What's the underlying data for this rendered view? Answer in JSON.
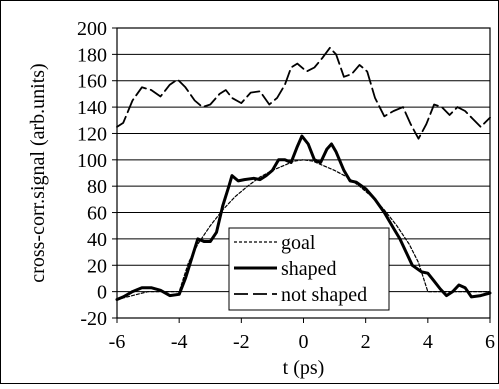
{
  "chart_data": {
    "type": "line",
    "title": "",
    "xlabel": "t (ps)",
    "ylabel": "cross-corr.signal  (arb.units)",
    "xlim": [
      -6,
      6
    ],
    "ylim": [
      -20,
      200
    ],
    "xticks": [
      -6,
      -4,
      -2,
      0,
      2,
      4,
      6
    ],
    "yticks": [
      -20,
      0,
      20,
      40,
      60,
      80,
      100,
      120,
      140,
      160,
      180,
      200
    ],
    "grid": "horizontal",
    "legend_position": "bottom-center",
    "series": [
      {
        "name": "goal",
        "style": "dotted",
        "color": "#000000",
        "points": [
          [
            -6.0,
            -6
          ],
          [
            -5.0,
            0
          ],
          [
            -4.2,
            0
          ],
          [
            -4.0,
            0
          ],
          [
            -3.7,
            22
          ],
          [
            -3.4,
            36
          ],
          [
            -3.0,
            50
          ],
          [
            -2.6,
            62
          ],
          [
            -2.2,
            72
          ],
          [
            -1.8,
            80
          ],
          [
            -1.4,
            87
          ],
          [
            -1.0,
            92
          ],
          [
            -0.6,
            96
          ],
          [
            -0.3,
            99
          ],
          [
            0.0,
            100
          ],
          [
            0.3,
            99
          ],
          [
            0.6,
            96
          ],
          [
            1.0,
            92
          ],
          [
            1.4,
            87
          ],
          [
            1.8,
            80
          ],
          [
            2.2,
            72
          ],
          [
            2.6,
            62
          ],
          [
            3.0,
            50
          ],
          [
            3.4,
            36
          ],
          [
            3.7,
            22
          ],
          [
            4.0,
            0
          ],
          [
            4.2,
            0
          ],
          [
            5.0,
            0
          ],
          [
            6.0,
            0
          ]
        ]
      },
      {
        "name": "shaped",
        "style": "solid-thick",
        "color": "#000000",
        "points": [
          [
            -6.0,
            -6
          ],
          [
            -5.8,
            -4
          ],
          [
            -5.5,
            0
          ],
          [
            -5.2,
            3
          ],
          [
            -4.9,
            3
          ],
          [
            -4.6,
            1
          ],
          [
            -4.3,
            -3
          ],
          [
            -4.0,
            -2
          ],
          [
            -3.8,
            10
          ],
          [
            -3.6,
            25
          ],
          [
            -3.4,
            40
          ],
          [
            -3.2,
            38
          ],
          [
            -3.0,
            38
          ],
          [
            -2.8,
            45
          ],
          [
            -2.6,
            65
          ],
          [
            -2.4,
            80
          ],
          [
            -2.3,
            88
          ],
          [
            -2.1,
            84
          ],
          [
            -1.9,
            85
          ],
          [
            -1.6,
            86
          ],
          [
            -1.4,
            85
          ],
          [
            -1.2,
            88
          ],
          [
            -1.0,
            92
          ],
          [
            -0.8,
            100
          ],
          [
            -0.6,
            100
          ],
          [
            -0.4,
            98
          ],
          [
            -0.2,
            110
          ],
          [
            -0.05,
            118
          ],
          [
            0.15,
            112
          ],
          [
            0.35,
            100
          ],
          [
            0.55,
            98
          ],
          [
            0.75,
            108
          ],
          [
            0.9,
            112
          ],
          [
            1.05,
            106
          ],
          [
            1.3,
            92
          ],
          [
            1.5,
            84
          ],
          [
            1.7,
            83
          ],
          [
            2.0,
            78
          ],
          [
            2.3,
            70
          ],
          [
            2.6,
            60
          ],
          [
            2.9,
            48
          ],
          [
            3.1,
            40
          ],
          [
            3.3,
            30
          ],
          [
            3.5,
            20
          ],
          [
            3.8,
            15
          ],
          [
            4.0,
            14
          ],
          [
            4.2,
            8
          ],
          [
            4.4,
            2
          ],
          [
            4.6,
            -3
          ],
          [
            4.8,
            0
          ],
          [
            5.0,
            5
          ],
          [
            5.2,
            3
          ],
          [
            5.4,
            -4
          ],
          [
            5.7,
            -3
          ],
          [
            6.0,
            -1
          ]
        ]
      },
      {
        "name": "not shaped",
        "style": "dashed",
        "color": "#000000",
        "points": [
          [
            -6.0,
            125
          ],
          [
            -5.8,
            128
          ],
          [
            -5.5,
            145
          ],
          [
            -5.2,
            155
          ],
          [
            -4.9,
            153
          ],
          [
            -4.6,
            148
          ],
          [
            -4.3,
            157
          ],
          [
            -4.05,
            161
          ],
          [
            -3.8,
            155
          ],
          [
            -3.5,
            145
          ],
          [
            -3.25,
            140
          ],
          [
            -3.0,
            142
          ],
          [
            -2.7,
            150
          ],
          [
            -2.5,
            153
          ],
          [
            -2.3,
            147
          ],
          [
            -2.0,
            143
          ],
          [
            -1.7,
            151
          ],
          [
            -1.4,
            152
          ],
          [
            -1.1,
            142
          ],
          [
            -0.85,
            147
          ],
          [
            -0.6,
            157
          ],
          [
            -0.4,
            170
          ],
          [
            -0.2,
            173
          ],
          [
            0.1,
            167
          ],
          [
            0.35,
            170
          ],
          [
            0.6,
            177
          ],
          [
            0.85,
            185
          ],
          [
            1.05,
            180
          ],
          [
            1.3,
            163
          ],
          [
            1.55,
            165
          ],
          [
            1.8,
            172
          ],
          [
            2.05,
            167
          ],
          [
            2.3,
            147
          ],
          [
            2.6,
            133
          ],
          [
            2.9,
            137
          ],
          [
            3.2,
            140
          ],
          [
            3.45,
            127
          ],
          [
            3.7,
            116
          ],
          [
            3.95,
            127
          ],
          [
            4.2,
            142
          ],
          [
            4.45,
            140
          ],
          [
            4.7,
            134
          ],
          [
            4.95,
            140
          ],
          [
            5.2,
            137
          ],
          [
            5.45,
            131
          ],
          [
            5.7,
            125
          ],
          [
            6.0,
            132
          ]
        ]
      }
    ]
  }
}
